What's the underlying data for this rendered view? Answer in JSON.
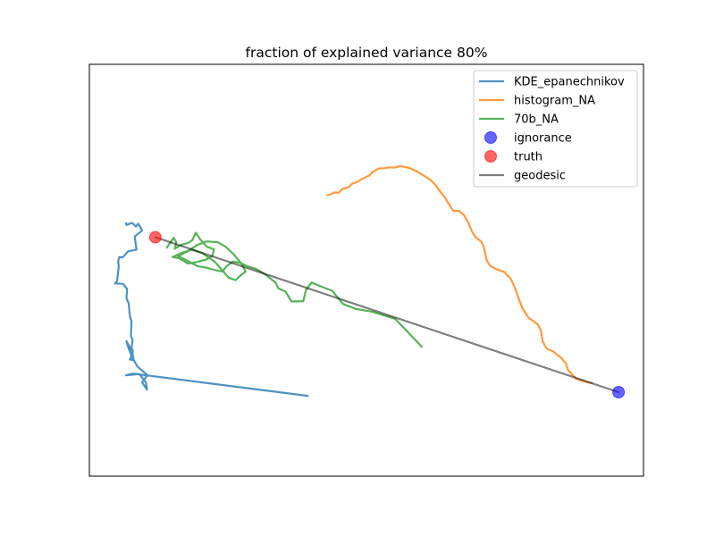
{
  "chart_data": {
    "type": "line",
    "title": "fraction of explained variance 80%",
    "xlabel": "",
    "ylabel": "",
    "xticks": false,
    "yticks": false,
    "xlim": [
      0,
      100
    ],
    "ylim": [
      0,
      100
    ],
    "legend_position": "top-right",
    "series": [
      {
        "name": "KDE_epanechnikov",
        "kind": "line",
        "color": "#1f77b4",
        "points": [
          [
            6.6,
            61.4
          ],
          [
            6.7,
            61.0
          ],
          [
            7.7,
            61.5
          ],
          [
            8.4,
            60.6
          ],
          [
            8.8,
            61.3
          ],
          [
            9.3,
            60.2
          ],
          [
            9.5,
            59.6
          ],
          [
            8.2,
            58.2
          ],
          [
            8.5,
            55.0
          ],
          [
            7.0,
            54.6
          ],
          [
            6.0,
            53.1
          ],
          [
            5.4,
            53.2
          ],
          [
            5.2,
            52.1
          ],
          [
            5.3,
            51.0
          ],
          [
            5.0,
            47.4
          ],
          [
            4.6,
            46.8
          ],
          [
            6.1,
            46.7
          ],
          [
            6.8,
            45.4
          ],
          [
            6.7,
            43.2
          ],
          [
            7.1,
            41.9
          ],
          [
            7.3,
            38.9
          ],
          [
            7.6,
            37.6
          ],
          [
            7.5,
            34.0
          ],
          [
            7.8,
            33.1
          ],
          [
            7.6,
            31.0
          ],
          [
            7.8,
            30.6
          ],
          [
            7.8,
            29.0
          ],
          [
            7.9,
            28.2
          ],
          [
            7.3,
            28.3
          ],
          [
            7.6,
            29.2
          ],
          [
            6.9,
            31.7
          ],
          [
            6.7,
            32.8
          ],
          [
            7.3,
            31.3
          ],
          [
            7.7,
            30.4
          ],
          [
            8.0,
            28.2
          ],
          [
            8.7,
            26.6
          ],
          [
            9.8,
            25.3
          ],
          [
            10.5,
            24.5
          ],
          [
            9.5,
            22.8
          ],
          [
            10.4,
            21.0
          ],
          [
            10.2,
            22.8
          ],
          [
            9.0,
            24.8
          ],
          [
            6.6,
            24.5
          ],
          [
            7.8,
            24.9
          ],
          [
            39.4,
            19.5
          ]
        ]
      },
      {
        "name": "histogram_NA",
        "kind": "line",
        "color": "#ff7f0e",
        "points": [
          [
            43.0,
            68.2
          ],
          [
            44.3,
            68.9
          ],
          [
            45.0,
            68.8
          ],
          [
            45.6,
            69.7
          ],
          [
            46.8,
            70.2
          ],
          [
            47.4,
            71.0
          ],
          [
            48.3,
            71.4
          ],
          [
            49.4,
            72.3
          ],
          [
            50.5,
            73.0
          ],
          [
            51.1,
            73.8
          ],
          [
            52.2,
            74.7
          ],
          [
            53.3,
            74.8
          ],
          [
            54.2,
            75.0
          ],
          [
            55.0,
            74.9
          ],
          [
            56.1,
            75.3
          ],
          [
            57.3,
            75.0
          ],
          [
            58.2,
            74.6
          ],
          [
            59.2,
            73.9
          ],
          [
            60.6,
            72.8
          ],
          [
            61.6,
            71.9
          ],
          [
            62.5,
            70.6
          ],
          [
            63.3,
            69.1
          ],
          [
            64.2,
            67.6
          ],
          [
            65.0,
            65.8
          ],
          [
            65.7,
            64.4
          ],
          [
            66.7,
            64.4
          ],
          [
            67.6,
            63.4
          ],
          [
            68.4,
            61.5
          ],
          [
            69.0,
            59.5
          ],
          [
            69.7,
            58.0
          ],
          [
            70.7,
            57.0
          ],
          [
            71.2,
            55.6
          ],
          [
            71.5,
            53.7
          ],
          [
            71.7,
            52.4
          ],
          [
            72.3,
            51.1
          ],
          [
            73.5,
            50.2
          ],
          [
            74.8,
            49.6
          ],
          [
            76.0,
            48.0
          ],
          [
            76.8,
            45.7
          ],
          [
            77.5,
            43.0
          ],
          [
            78.2,
            40.6
          ],
          [
            79.3,
            38.4
          ],
          [
            80.9,
            36.9
          ],
          [
            81.5,
            35.3
          ],
          [
            81.8,
            32.7
          ],
          [
            82.6,
            30.9
          ],
          [
            83.6,
            30.4
          ],
          [
            85.1,
            28.8
          ],
          [
            86.0,
            27.4
          ],
          [
            86.4,
            25.7
          ],
          [
            87.9,
            23.6
          ],
          [
            89.9,
            22.8
          ],
          [
            90.7,
            22.6
          ]
        ]
      },
      {
        "name": "70b_NA",
        "kind": "line",
        "color": "#2ca02c",
        "points": [
          [
            14.0,
            55.5
          ],
          [
            15.2,
            57.9
          ],
          [
            15.7,
            56.8
          ],
          [
            15.4,
            55.2
          ],
          [
            16.6,
            56.2
          ],
          [
            17.8,
            56.6
          ],
          [
            18.6,
            57.3
          ],
          [
            19.2,
            59.1
          ],
          [
            20.1,
            57.3
          ],
          [
            21.2,
            55.7
          ],
          [
            22.5,
            55.1
          ],
          [
            22.2,
            53.5
          ],
          [
            21.1,
            52.6
          ],
          [
            19.4,
            52.0
          ],
          [
            17.8,
            51.6
          ],
          [
            16.2,
            52.9
          ],
          [
            15.0,
            53.2
          ],
          [
            16.8,
            54.3
          ],
          [
            18.5,
            55.0
          ],
          [
            20.3,
            54.2
          ],
          [
            22.6,
            52.1
          ],
          [
            24.0,
            50.0
          ],
          [
            25.1,
            48.2
          ],
          [
            26.4,
            47.6
          ],
          [
            27.1,
            48.5
          ],
          [
            28.2,
            49.7
          ],
          [
            27.4,
            51.7
          ],
          [
            26.0,
            53.9
          ],
          [
            24.6,
            55.7
          ],
          [
            23.2,
            56.8
          ],
          [
            21.2,
            57.0
          ],
          [
            19.4,
            56.1
          ],
          [
            17.6,
            54.5
          ],
          [
            16.0,
            53.4
          ],
          [
            17.7,
            52.3
          ],
          [
            19.5,
            51.0
          ],
          [
            21.2,
            50.6
          ],
          [
            22.8,
            50.0
          ],
          [
            24.0,
            49.7
          ],
          [
            24.7,
            50.9
          ],
          [
            25.9,
            52.1
          ],
          [
            27.2,
            51.8
          ],
          [
            28.5,
            51.0
          ],
          [
            29.9,
            50.4
          ],
          [
            30.9,
            49.7
          ],
          [
            31.9,
            48.8
          ],
          [
            33.6,
            47.0
          ],
          [
            34.1,
            45.6
          ],
          [
            35.4,
            44.8
          ],
          [
            36.5,
            42.4
          ],
          [
            38.6,
            42.5
          ],
          [
            39.1,
            45.2
          ],
          [
            40.1,
            47.0
          ],
          [
            41.4,
            46.3
          ],
          [
            43.8,
            45.0
          ],
          [
            45.8,
            41.8
          ],
          [
            48.1,
            40.6
          ],
          [
            51.1,
            39.9
          ],
          [
            55.2,
            38.2
          ],
          [
            60.0,
            31.4
          ]
        ]
      },
      {
        "name": "ignorance",
        "kind": "marker",
        "color": "#0000ff",
        "points": [
          [
            95.5,
            20.4
          ]
        ]
      },
      {
        "name": "truth",
        "kind": "marker",
        "color": "#ff0000",
        "points": [
          [
            11.9,
            58.0
          ]
        ]
      },
      {
        "name": "geodesic",
        "kind": "line",
        "color": "#000000",
        "points": [
          [
            11.9,
            58.0
          ],
          [
            95.5,
            20.4
          ]
        ]
      }
    ]
  }
}
